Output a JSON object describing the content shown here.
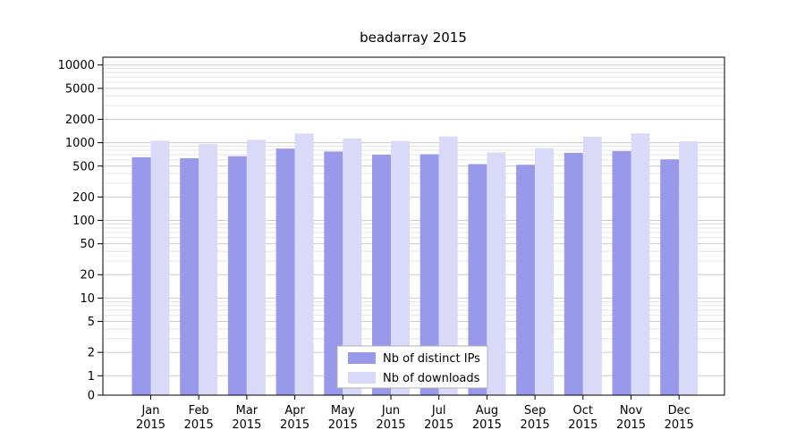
{
  "chart_data": {
    "type": "bar",
    "title": "beadarray 2015",
    "categories": [
      "Jan 2015",
      "Feb 2015",
      "Mar 2015",
      "Apr 2015",
      "May 2015",
      "Jun 2015",
      "Jul 2015",
      "Aug 2015",
      "Sep 2015",
      "Oct 2015",
      "Nov 2015",
      "Dec 2015"
    ],
    "series": [
      {
        "name": "Nb of distinct IPs",
        "color": "#9999ec",
        "values": [
          650,
          630,
          670,
          840,
          770,
          700,
          710,
          530,
          520,
          740,
          780,
          610
        ]
      },
      {
        "name": "Nb of downloads",
        "color": "#d9d9f8",
        "values": [
          1060,
          960,
          1090,
          1310,
          1130,
          1050,
          1200,
          750,
          850,
          1190,
          1320,
          1040
        ]
      }
    ],
    "y_scale": "log",
    "y_ticks": [
      0,
      1,
      2,
      5,
      10,
      20,
      50,
      100,
      200,
      500,
      1000,
      2000,
      5000,
      10000
    ],
    "ylim": [
      0,
      10000
    ],
    "xlabel": "",
    "ylabel": "",
    "grid": true,
    "legend_position": "bottom-center"
  }
}
